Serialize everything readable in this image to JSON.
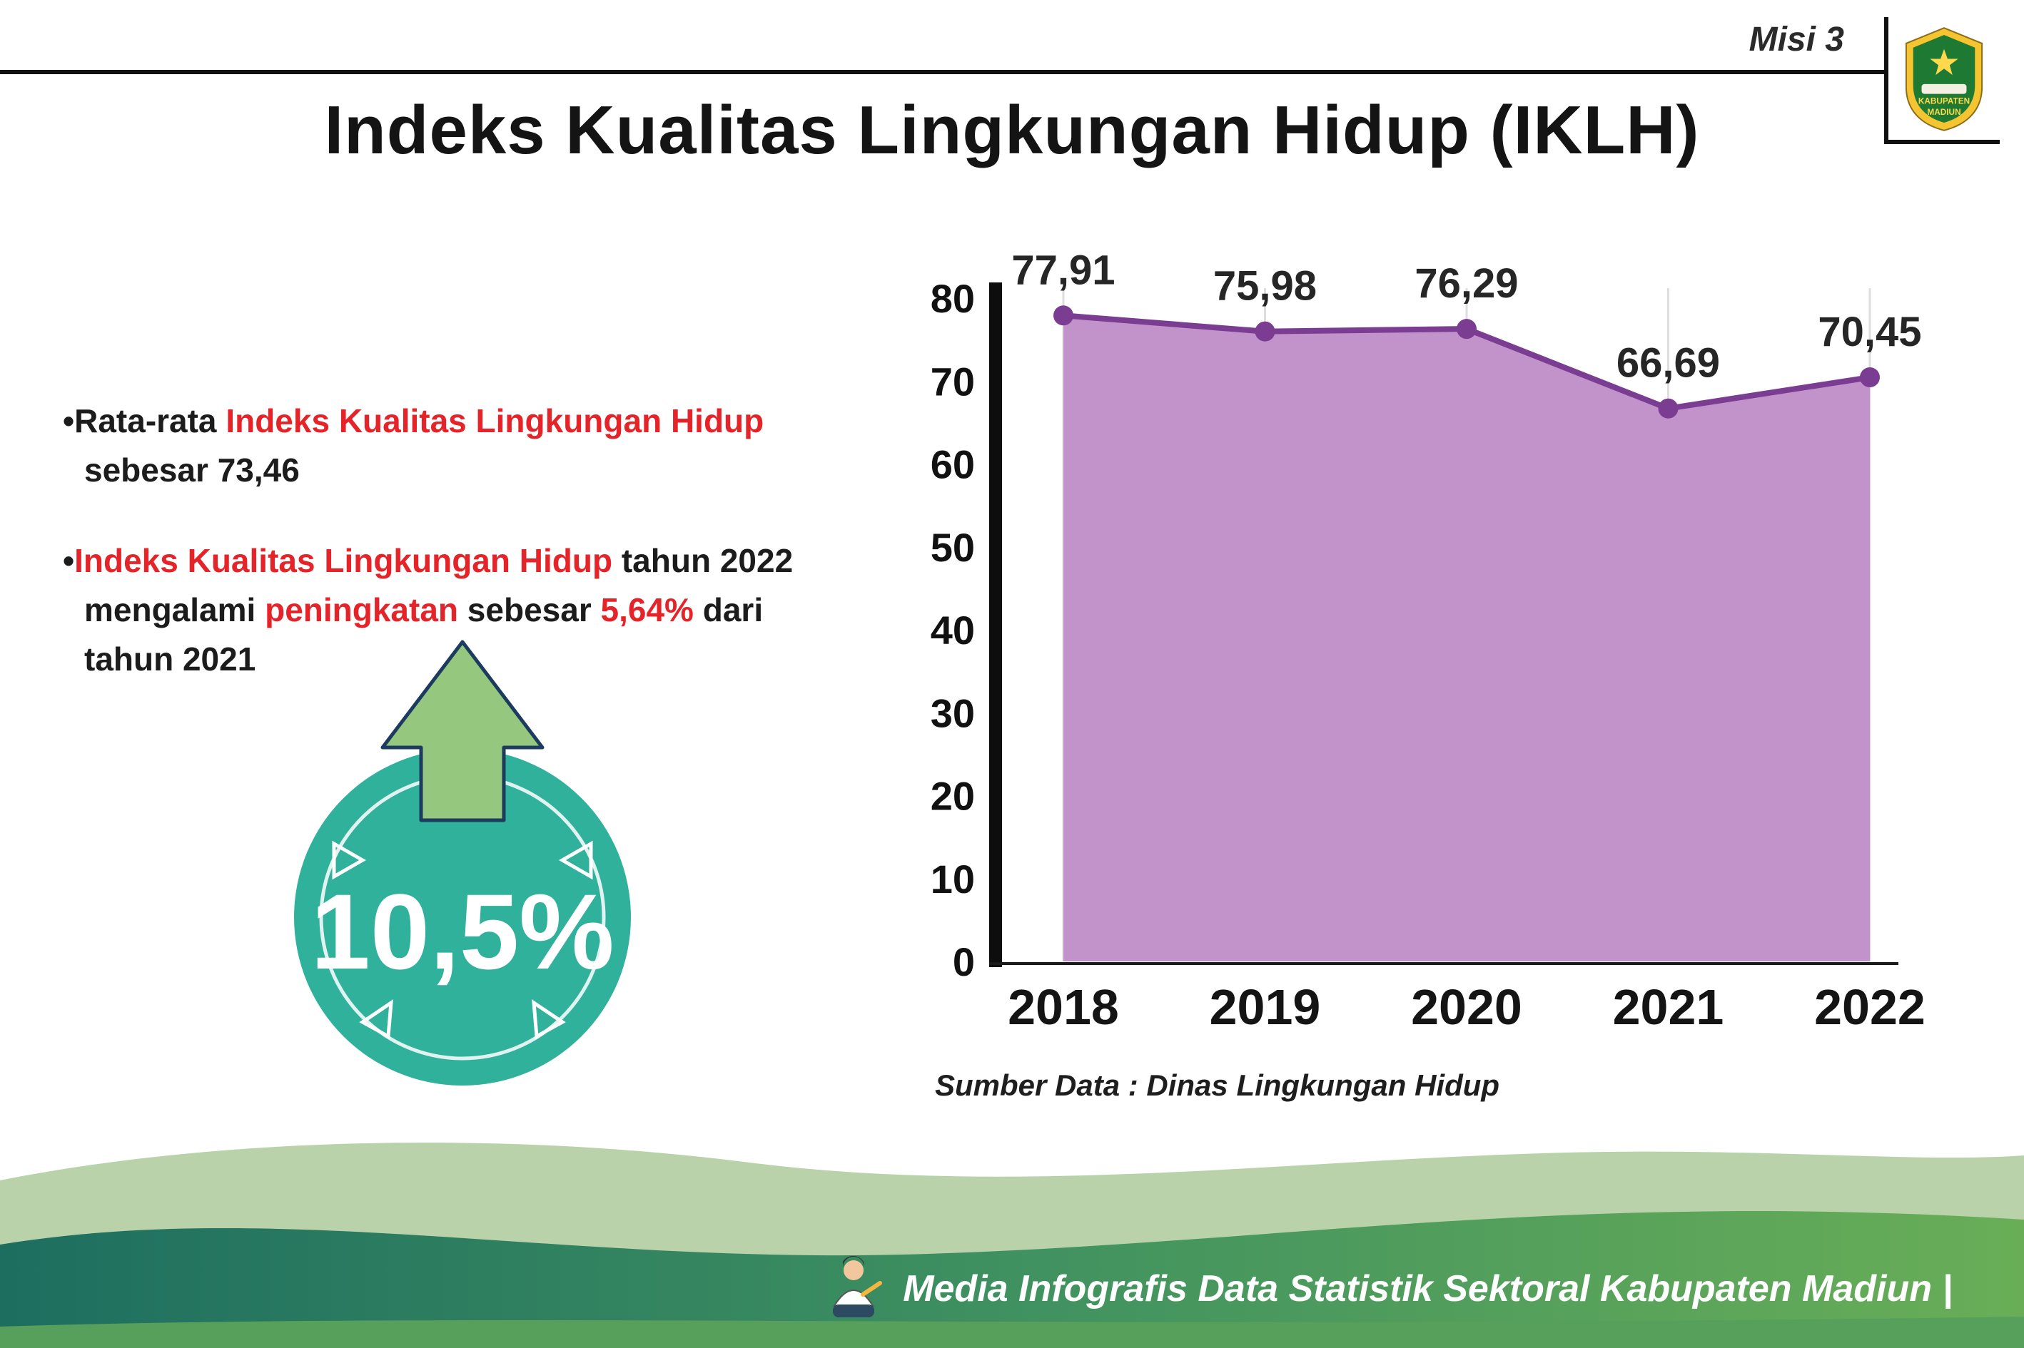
{
  "header": {
    "misi_label": "Misi 3",
    "title": "Indeks Kualitas Lingkungan Hidup (IKLH)"
  },
  "logo": {
    "top_text": "KABUPATEN",
    "bottom_text": "MADIUN"
  },
  "bullets": {
    "item1": {
      "part1": "Rata-rata ",
      "part2": "Indeks Kualitas Lingkungan Hidup",
      "part3": " sebesar 73,46"
    },
    "item2": {
      "part1": "Indeks Kualitas Lingkungan Hidup",
      "part2": " tahun 2022 mengalami ",
      "part3": "peningkatan",
      "part4": " sebesar ",
      "part5": "5,64%",
      "part6": " dari tahun 2021"
    }
  },
  "badge": {
    "value": "10,5%"
  },
  "chart_data": {
    "type": "area",
    "title": "",
    "categories": [
      "2018",
      "2019",
      "2020",
      "2021",
      "2022"
    ],
    "values": [
      77.91,
      75.98,
      76.29,
      66.69,
      70.45
    ],
    "value_labels": [
      "77,91",
      "75,98",
      "76,29",
      "66,69",
      "70,45"
    ],
    "ylim": [
      0,
      80
    ],
    "yticks": [
      0,
      10,
      20,
      30,
      40,
      50,
      60,
      70,
      80
    ],
    "grid": "vertical-light",
    "legend": "none",
    "source": "Sumber Data : Dinas Lingkungan Hidup",
    "area_color": "#c292ca",
    "line_color": "#7a3d92"
  },
  "footer": {
    "caption": "Media Infografis Data Statistik Sektoral Kabupaten Madiun |"
  },
  "colors": {
    "accent_red": "#e5242a",
    "badge_teal": "#2fb19b",
    "arrow_green": "#95c87e",
    "footer_teal": "#236e60",
    "footer_green": "#69ae57"
  }
}
